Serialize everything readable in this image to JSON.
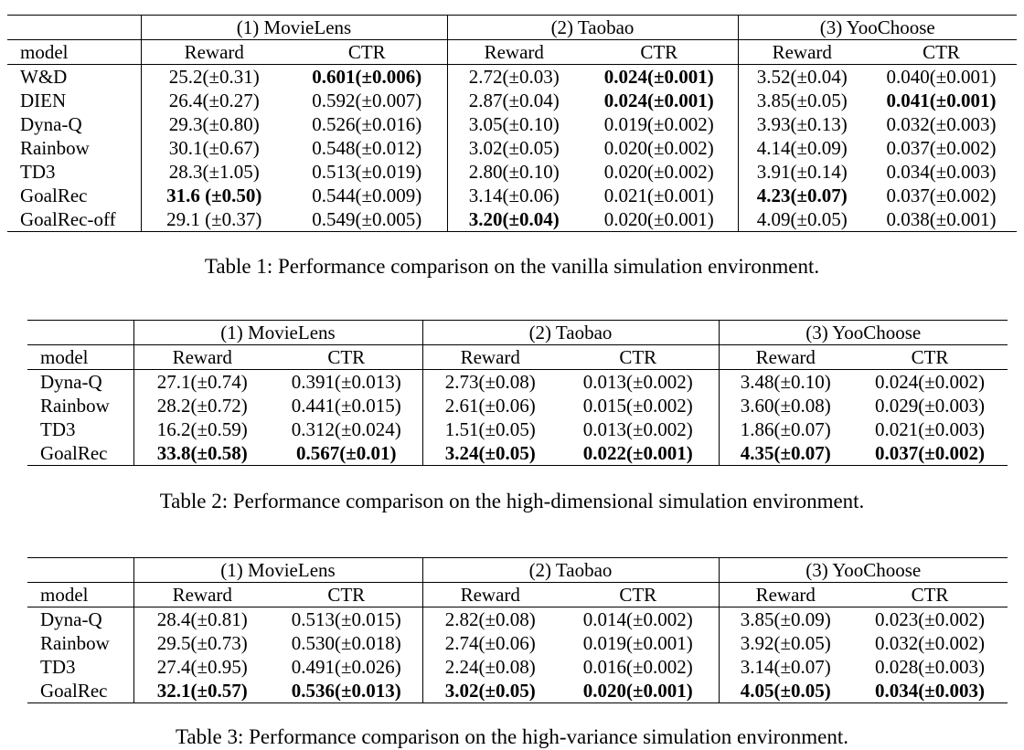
{
  "tables": [
    {
      "caption": "Table 1: Performance comparison on the vanilla simulation environment.",
      "datasets": [
        "(1) MovieLens",
        "(2) Taobao",
        "(3) YooChoose"
      ],
      "columns": [
        "model",
        "Reward",
        "CTR",
        "Reward",
        "CTR",
        "Reward",
        "CTR"
      ],
      "rows": [
        {
          "model": "W&D",
          "cells": [
            "25.2(±0.31)",
            "0.601(±0.006)",
            "2.72(±0.03)",
            "0.024(±0.001)",
            "3.52(±0.04)",
            "0.040(±0.001)"
          ],
          "bold": [
            false,
            true,
            false,
            true,
            false,
            false
          ]
        },
        {
          "model": "DIEN",
          "cells": [
            "26.4(±0.27)",
            "0.592(±0.007)",
            "2.87(±0.04)",
            "0.024(±0.001)",
            "3.85(±0.05)",
            "0.041(±0.001)"
          ],
          "bold": [
            false,
            false,
            false,
            true,
            false,
            true
          ]
        },
        {
          "model": "Dyna-Q",
          "cells": [
            "29.3(±0.80)",
            "0.526(±0.016)",
            "3.05(±0.10)",
            "0.019(±0.002)",
            "3.93(±0.13)",
            "0.032(±0.003)"
          ],
          "bold": [
            false,
            false,
            false,
            false,
            false,
            false
          ]
        },
        {
          "model": "Rainbow",
          "cells": [
            "30.1(±0.67)",
            "0.548(±0.012)",
            "3.02(±0.05)",
            "0.020(±0.002)",
            "4.14(±0.09)",
            "0.037(±0.002)"
          ],
          "bold": [
            false,
            false,
            false,
            false,
            false,
            false
          ]
        },
        {
          "model": "TD3",
          "cells": [
            "28.3(±1.05)",
            "0.513(±0.019)",
            "2.80(±0.10)",
            "0.020(±0.002)",
            "3.91(±0.14)",
            "0.034(±0.003)"
          ],
          "bold": [
            false,
            false,
            false,
            false,
            false,
            false
          ]
        },
        {
          "model": "GoalRec",
          "cells": [
            "31.6 (±0.50)",
            "0.544(±0.009)",
            "3.14(±0.06)",
            "0.021(±0.001)",
            "4.23(±0.07)",
            "0.037(±0.002)"
          ],
          "bold": [
            true,
            false,
            false,
            false,
            true,
            false
          ]
        },
        {
          "model": "GoalRec-off",
          "cells": [
            "29.1 (±0.37)",
            "0.549(±0.005)",
            "3.20(±0.04)",
            "0.020(±0.001)",
            "4.09(±0.05)",
            "0.038(±0.001)"
          ],
          "bold": [
            false,
            false,
            true,
            false,
            false,
            false
          ]
        }
      ]
    },
    {
      "caption": "Table 2: Performance comparison on the high-dimensional simulation environment.",
      "datasets": [
        "(1) MovieLens",
        "(2) Taobao",
        "(3) YooChoose"
      ],
      "columns": [
        "model",
        "Reward",
        "CTR",
        "Reward",
        "CTR",
        "Reward",
        "CTR"
      ],
      "rows": [
        {
          "model": "Dyna-Q",
          "cells": [
            "27.1(±0.74)",
            "0.391(±0.013)",
            "2.73(±0.08)",
            "0.013(±0.002)",
            "3.48(±0.10)",
            "0.024(±0.002)"
          ],
          "bold": [
            false,
            false,
            false,
            false,
            false,
            false
          ]
        },
        {
          "model": "Rainbow",
          "cells": [
            "28.2(±0.72)",
            "0.441(±0.015)",
            "2.61(±0.06)",
            "0.015(±0.002)",
            "3.60(±0.08)",
            "0.029(±0.003)"
          ],
          "bold": [
            false,
            false,
            false,
            false,
            false,
            false
          ]
        },
        {
          "model": "TD3",
          "cells": [
            "16.2(±0.59)",
            "0.312(±0.024)",
            "1.51(±0.05)",
            "0.013(±0.002)",
            "1.86(±0.07)",
            "0.021(±0.003)"
          ],
          "bold": [
            false,
            false,
            false,
            false,
            false,
            false
          ]
        },
        {
          "model": "GoalRec",
          "cells": [
            "33.8(±0.58)",
            "0.567(±0.01)",
            "3.24(±0.05)",
            "0.022(±0.001)",
            "4.35(±0.07)",
            "0.037(±0.002)"
          ],
          "bold": [
            true,
            true,
            true,
            true,
            true,
            true
          ]
        }
      ]
    },
    {
      "caption": "Table 3: Performance comparison on the high-variance simulation environment.",
      "datasets": [
        "(1) MovieLens",
        "(2) Taobao",
        "(3) YooChoose"
      ],
      "columns": [
        "model",
        "Reward",
        "CTR",
        "Reward",
        "CTR",
        "Reward",
        "CTR"
      ],
      "rows": [
        {
          "model": "Dyna-Q",
          "cells": [
            "28.4(±0.81)",
            "0.513(±0.015)",
            "2.82(±0.08)",
            "0.014(±0.002)",
            "3.85(±0.09)",
            "0.023(±0.002)"
          ],
          "bold": [
            false,
            false,
            false,
            false,
            false,
            false
          ]
        },
        {
          "model": "Rainbow",
          "cells": [
            "29.5(±0.73)",
            "0.530(±0.018)",
            "2.74(±0.06)",
            "0.019(±0.001)",
            "3.92(±0.05)",
            "0.032(±0.002)"
          ],
          "bold": [
            false,
            false,
            false,
            false,
            false,
            false
          ]
        },
        {
          "model": "TD3",
          "cells": [
            "27.4(±0.95)",
            "0.491(±0.026)",
            "2.24(±0.08)",
            "0.016(±0.002)",
            "3.14(±0.07)",
            "0.028(±0.003)"
          ],
          "bold": [
            false,
            false,
            false,
            false,
            false,
            false
          ]
        },
        {
          "model": "GoalRec",
          "cells": [
            "32.1(±0.57)",
            "0.536(±0.013)",
            "3.02(±0.05)",
            "0.020(±0.001)",
            "4.05(±0.05)",
            "0.034(±0.003)"
          ],
          "bold": [
            true,
            true,
            true,
            true,
            true,
            true
          ]
        }
      ]
    }
  ]
}
